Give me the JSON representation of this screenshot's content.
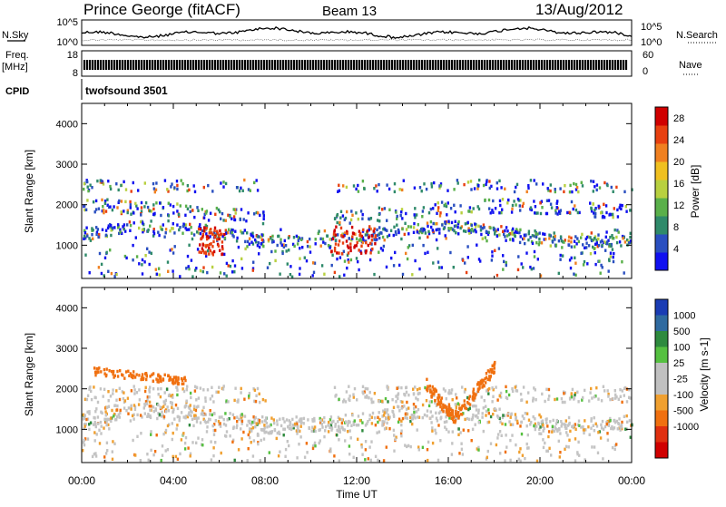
{
  "header": {
    "title": "Prince George (fitACF)",
    "beam": "Beam 13",
    "date": "13/Aug/2012"
  },
  "noise_panel": {
    "left_label": "N.Sky",
    "right_label": "N.Search",
    "left_ticks": [
      "10^5",
      "10^0"
    ],
    "right_ticks": [
      "10^5",
      "10^0"
    ]
  },
  "freq_panel": {
    "left_label_1": "Freq.",
    "left_label_2": "[MHz]",
    "right_label": "Nave",
    "left_ticks": [
      "18",
      "8"
    ],
    "right_ticks": [
      "60",
      "0"
    ]
  },
  "cpid_panel": {
    "label": "CPID",
    "text": "twofsound 3501"
  },
  "colors": {
    "power_scale": [
      "#1010f0",
      "#2a4fc0",
      "#2f8a6a",
      "#5ab04a",
      "#b8d040",
      "#f0c020",
      "#f08020",
      "#e84010",
      "#d00000"
    ],
    "velocity_scale": [
      "#1a3cb4",
      "#2f6aa0",
      "#2e8a3e",
      "#55c040",
      "#c0c0c0",
      "#c0c0c0",
      "#f0a030",
      "#f07010",
      "#e03010",
      "#d00000"
    ]
  },
  "chart_data": [
    {
      "type": "heatmap",
      "name": "power",
      "ylabel": "Slant Range [km]",
      "xlabel": "",
      "ylim": [
        180,
        4500
      ],
      "xlim": [
        0,
        24
      ],
      "yticks": [
        "1000",
        "2000",
        "3000",
        "4000"
      ],
      "ytick_values": [
        1000,
        2000,
        3000,
        4000
      ],
      "colorbar_label": "Power [dB]",
      "colorbar_ticks": [
        "28",
        "24",
        "20",
        "16",
        "12",
        "8",
        "4"
      ],
      "colorbar_values": [
        28,
        24,
        20,
        16,
        12,
        8,
        4
      ],
      "colorbar_range": [
        0,
        30
      ]
    },
    {
      "type": "heatmap",
      "name": "velocity",
      "ylabel": "Slant Range [km]",
      "xlabel": "Time UT",
      "ylim": [
        180,
        4500
      ],
      "xlim": [
        0,
        24
      ],
      "yticks": [
        "1000",
        "2000",
        "3000",
        "4000"
      ],
      "ytick_values": [
        1000,
        2000,
        3000,
        4000
      ],
      "xticks": [
        "00:00",
        "04:00",
        "08:00",
        "12:00",
        "16:00",
        "20:00",
        "00:00"
      ],
      "xtick_values": [
        0,
        4,
        8,
        12,
        16,
        20,
        24
      ],
      "colorbar_label": "Velocity [m s-1]",
      "colorbar_ticks": [
        "1000",
        "500",
        "100",
        "25",
        "-25",
        "-100",
        "-500",
        "-1000"
      ],
      "colorbar_range": [
        -1000,
        1000
      ]
    }
  ]
}
